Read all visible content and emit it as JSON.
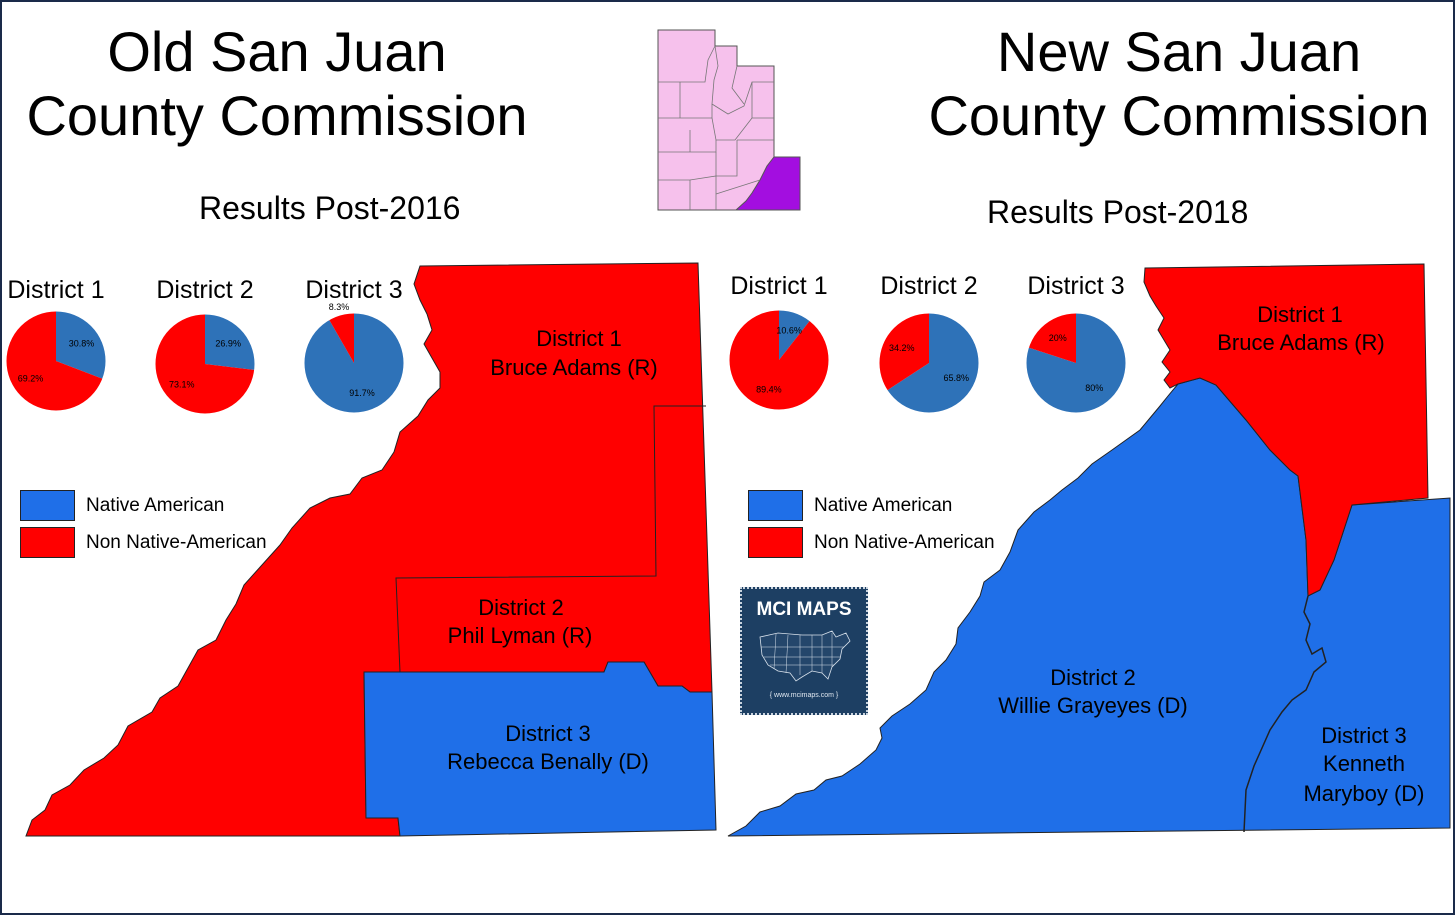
{
  "colors": {
    "native": "#1f6fe8",
    "non_native": "#ff0000",
    "pie_native": "#2e72b8",
    "pie_non_native": "#ff0000",
    "utah_fill": "#f6c1ec",
    "san_juan_highlight": "#a30ee0",
    "badge_bg": "#1d3f63"
  },
  "left": {
    "title_line1": "Old San Juan",
    "title_line2": "County Commission",
    "subtitle": "Results Post-2016",
    "districts": [
      {
        "title": "District 1",
        "commissioner": "Bruce Adams (R)",
        "color": "non_native"
      },
      {
        "title": "District 2",
        "commissioner": "Phil Lyman (R)",
        "color": "non_native"
      },
      {
        "title": "District 3",
        "commissioner": "Rebecca Benally (D)",
        "color": "native"
      }
    ]
  },
  "right": {
    "title_line1": "New San Juan",
    "title_line2": "County Commission",
    "subtitle": "Results Post-2018",
    "districts": [
      {
        "title": "District 1",
        "commissioner": "Bruce Adams (R)",
        "color": "non_native"
      },
      {
        "title": "District 2",
        "commissioner": "Willie Grayeyes (D)",
        "color": "native"
      },
      {
        "title": "District 3",
        "commissioner_line1": "Kenneth",
        "commissioner_line2": "Maryboy (D)",
        "color": "native"
      }
    ]
  },
  "legend": {
    "native_label": "Native American",
    "non_native_label": "Non Native-American"
  },
  "pies": {
    "old": [
      {
        "district": "District 1",
        "native_label": "30.8%",
        "non_native_label": "69.2%",
        "native_pct": 30.8
      },
      {
        "district": "District 2",
        "native_label": "26.9%",
        "non_native_label": "73.1%",
        "native_pct": 26.9
      },
      {
        "district": "District 3",
        "native_label": "91.7%",
        "non_native_label": "8.3%",
        "native_pct": 91.7
      }
    ],
    "new": [
      {
        "district": "District 1",
        "native_label": "10.6%",
        "non_native_label": "89.4%",
        "native_pct": 10.6
      },
      {
        "district": "District 2",
        "native_label": "65.8%",
        "non_native_label": "34.2%",
        "native_pct": 65.8
      },
      {
        "district": "District 3",
        "native_label": "80%",
        "non_native_label": "20%",
        "native_pct": 80
      }
    ]
  },
  "badge": {
    "title": "MCI MAPS",
    "url": "{ www.mcimaps.com }"
  },
  "inset": {
    "highlighted_county": "San Juan"
  }
}
